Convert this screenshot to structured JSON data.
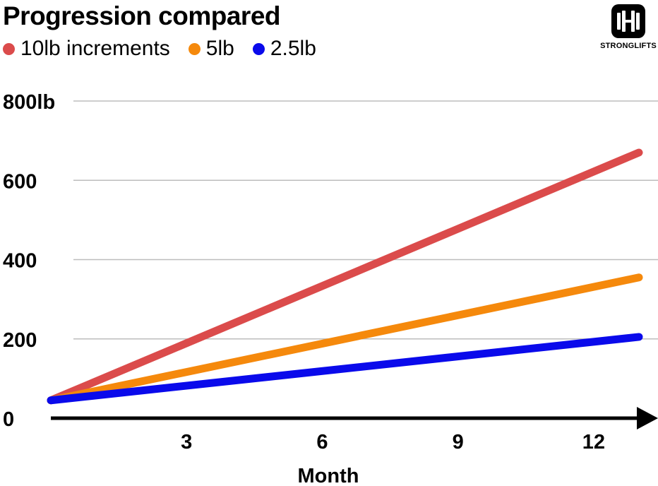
{
  "title": "Progression compared",
  "logo": {
    "name": "strongLifts-logo",
    "text": "STRONGLIFTS"
  },
  "legend": [
    {
      "label": "10lb increments",
      "color": "#db4b4b"
    },
    {
      "label": "5lb",
      "color": "#f5890c"
    },
    {
      "label": "2.5lb",
      "color": "#0a0aeb"
    }
  ],
  "chart_data": {
    "type": "line",
    "title": "Progression compared",
    "xlabel": "Month",
    "ylabel": "",
    "xlim": [
      0,
      13
    ],
    "ylim": [
      0,
      800
    ],
    "x_ticks": [
      3,
      6,
      9,
      12
    ],
    "x_tick_labels": [
      "3",
      "6",
      "9",
      "12"
    ],
    "y_ticks": [
      0,
      200,
      400,
      600,
      800
    ],
    "y_tick_labels": [
      "0",
      "200",
      "400",
      "600",
      "800lb"
    ],
    "grid": true,
    "legend_position": "top-left",
    "series": [
      {
        "name": "10lb increments",
        "color": "#db4b4b",
        "x": [
          0,
          13
        ],
        "y": [
          45,
          670
        ]
      },
      {
        "name": "5lb",
        "color": "#f5890c",
        "x": [
          0,
          13
        ],
        "y": [
          45,
          355
        ]
      },
      {
        "name": "2.5lb",
        "color": "#0a0aeb",
        "x": [
          0,
          13
        ],
        "y": [
          45,
          205
        ]
      }
    ]
  }
}
